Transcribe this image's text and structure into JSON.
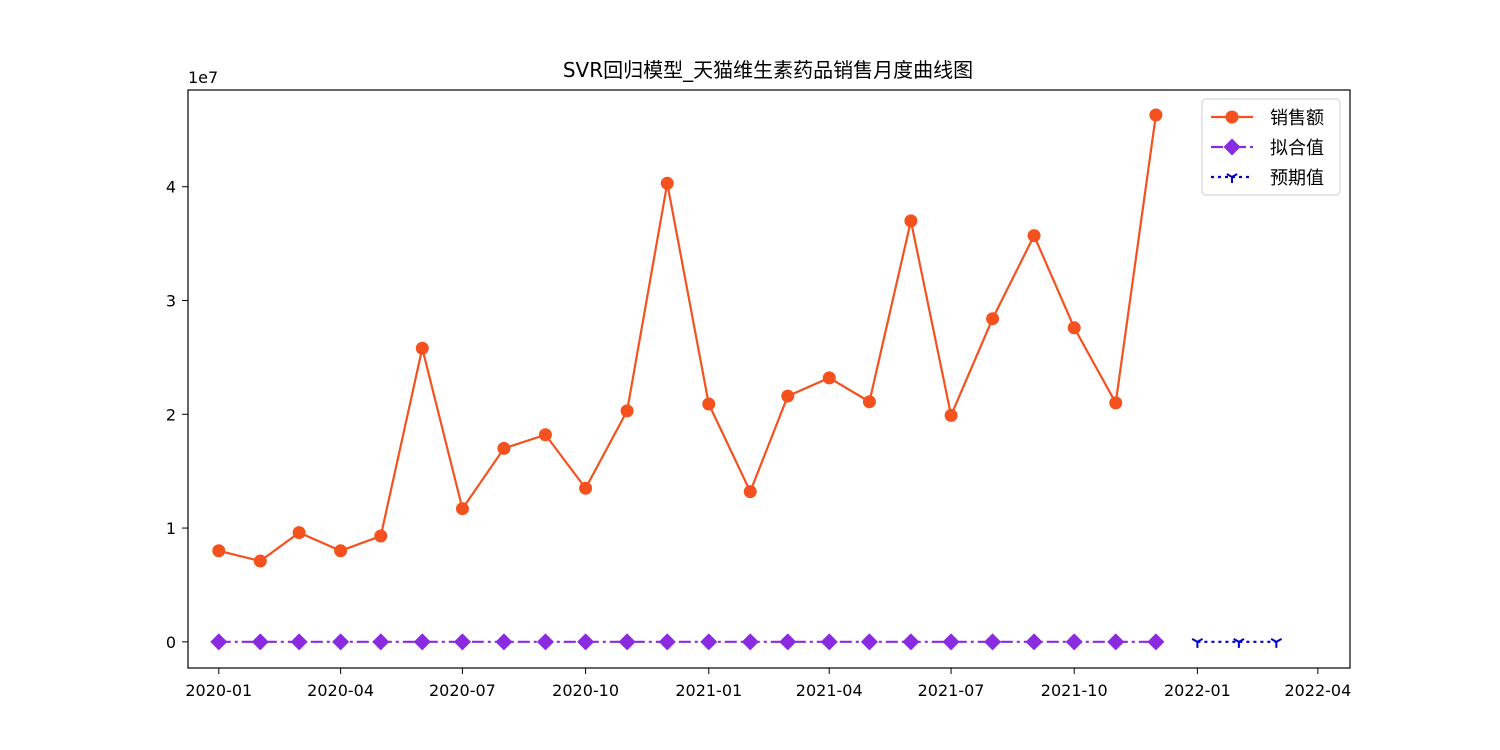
{
  "chart_data": {
    "type": "line",
    "title": "SVR回归模型_天猫维生素药品销售月度曲线图",
    "xlabel": "",
    "ylabel": "",
    "y_offset_text": "1e7",
    "y_scale_factor": 10000000,
    "ylim": [
      -2300000,
      48500000
    ],
    "xlim": [
      "2019-12-09",
      "2022-04-25"
    ],
    "x_ticks": [
      "2020-01",
      "2020-04",
      "2020-07",
      "2020-10",
      "2021-01",
      "2021-04",
      "2021-07",
      "2021-10",
      "2022-01",
      "2022-04"
    ],
    "y_ticks": [
      "0",
      "1",
      "2",
      "3",
      "4"
    ],
    "y_tick_values": [
      0,
      10000000,
      20000000,
      30000000,
      40000000
    ],
    "grid": false,
    "legend_position": "top-right",
    "series": [
      {
        "name": "销售额",
        "color": "#f4511e",
        "linestyle": "solid",
        "marker": "circle",
        "x": [
          "2020-01-01",
          "2020-02-01",
          "2020-03-01",
          "2020-04-01",
          "2020-05-01",
          "2020-06-01",
          "2020-07-01",
          "2020-08-01",
          "2020-09-01",
          "2020-10-01",
          "2020-11-01",
          "2020-12-01",
          "2021-01-01",
          "2021-02-01",
          "2021-03-01",
          "2021-04-01",
          "2021-05-01",
          "2021-06-01",
          "2021-07-01",
          "2021-08-01",
          "2021-09-01",
          "2021-10-01",
          "2021-11-01",
          "2021-12-01"
        ],
        "values": [
          8000000,
          7100000,
          9600000,
          8000000,
          9300000,
          25800000,
          11700000,
          17000000,
          18200000,
          13500000,
          20300000,
          40300000,
          20900000,
          13200000,
          21600000,
          23200000,
          21100000,
          37000000,
          19900000,
          28400000,
          35700000,
          27600000,
          21000000,
          46300000
        ]
      },
      {
        "name": "拟合值",
        "color": "#8a2be2",
        "linestyle": "dashdot",
        "marker": "diamond",
        "x": [
          "2020-01-01",
          "2020-02-01",
          "2020-03-01",
          "2020-04-01",
          "2020-05-01",
          "2020-06-01",
          "2020-07-01",
          "2020-08-01",
          "2020-09-01",
          "2020-10-01",
          "2020-11-01",
          "2020-12-01",
          "2021-01-01",
          "2021-02-01",
          "2021-03-01",
          "2021-04-01",
          "2021-05-01",
          "2021-06-01",
          "2021-07-01",
          "2021-08-01",
          "2021-09-01",
          "2021-10-01",
          "2021-11-01",
          "2021-12-01"
        ],
        "values": [
          0,
          0,
          0,
          0,
          0,
          0,
          0,
          0,
          0,
          0,
          0,
          0,
          0,
          0,
          0,
          0,
          0,
          0,
          0,
          0,
          0,
          0,
          0,
          0
        ]
      },
      {
        "name": "预期值",
        "color": "#0000cd",
        "linestyle": "dotted",
        "marker": "tri_down",
        "x": [
          "2022-01-01",
          "2022-02-01",
          "2022-03-01"
        ],
        "values": [
          0,
          0,
          0
        ]
      }
    ]
  }
}
